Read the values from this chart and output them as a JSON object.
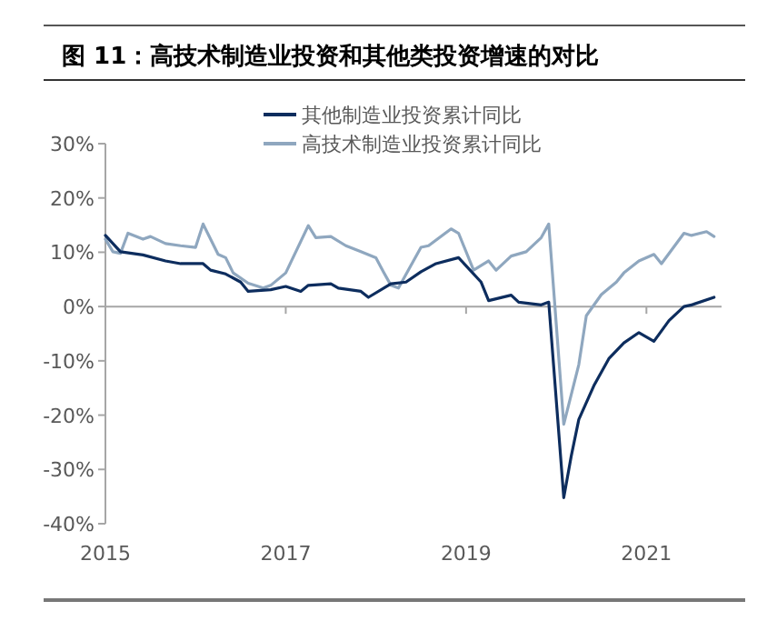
{
  "chart_data": {
    "type": "line",
    "title": "图 11：高技术制造业投资和其他类投资增速的对比",
    "legend": "top",
    "marker": "none",
    "line_style": "solid",
    "grid": false,
    "xlim": [
      "2015-01",
      "2021-11"
    ],
    "xticks": [
      "2015",
      "2017",
      "2019",
      "2021"
    ],
    "ylim": [
      -40,
      30
    ],
    "yticks": [
      {
        "value": 30,
        "label": "30%"
      },
      {
        "value": 20,
        "label": "20%"
      },
      {
        "value": 10,
        "label": "10%"
      },
      {
        "value": 0,
        "label": "0%"
      },
      {
        "value": -10,
        "label": "-10%"
      },
      {
        "value": -20,
        "label": "-20%"
      },
      {
        "value": -30,
        "label": "-30%"
      },
      {
        "value": -40,
        "label": "-40%"
      }
    ],
    "ref_lines": [
      {
        "axis": "y",
        "value": 0,
        "color": "#a6a6a6"
      }
    ],
    "series": [
      {
        "name": "其他制造业投资累计同比",
        "color": "#0d2d5e",
        "x": [
          "2015-01",
          "2015-03",
          "2015-06",
          "2015-09",
          "2015-11",
          "2016-02",
          "2016-03",
          "2016-05",
          "2016-07",
          "2016-08",
          "2016-11",
          "2017-01",
          "2017-03",
          "2017-04",
          "2017-07",
          "2017-08",
          "2017-11",
          "2017-12",
          "2018-03",
          "2018-05",
          "2018-07",
          "2018-09",
          "2018-12",
          "2019-01",
          "2019-03",
          "2019-04",
          "2019-07",
          "2019-08",
          "2019-11",
          "2019-12",
          "2020-02",
          "2020-03",
          "2020-04",
          "2020-06",
          "2020-08",
          "2020-10",
          "2020-12",
          "2021-02",
          "2021-04",
          "2021-06",
          "2021-07",
          "2021-10"
        ],
        "values": [
          13.1,
          10.1,
          9.5,
          8.4,
          7.9,
          7.9,
          6.7,
          6.0,
          4.5,
          2.8,
          3.1,
          3.7,
          2.8,
          3.9,
          4.2,
          3.4,
          2.8,
          1.7,
          4.2,
          4.5,
          6.4,
          7.9,
          9.0,
          7.5,
          4.5,
          1.1,
          2.1,
          0.8,
          0.3,
          0.8,
          -35.2,
          -27.5,
          -20.8,
          -14.6,
          -9.6,
          -6.7,
          -4.8,
          -6.4,
          -2.6,
          0,
          0.3,
          1.7
        ]
      },
      {
        "name": "高技术制造业投资累计同比",
        "color": "#8fa7bf",
        "x": [
          "2015-01",
          "2015-02",
          "2015-03",
          "2015-04",
          "2015-06",
          "2015-07",
          "2015-09",
          "2015-11",
          "2016-01",
          "2016-02",
          "2016-04",
          "2016-05",
          "2016-06",
          "2016-08",
          "2016-10",
          "2016-11",
          "2017-01",
          "2017-04",
          "2017-05",
          "2017-07",
          "2017-09",
          "2017-11",
          "2018-01",
          "2018-02",
          "2018-03",
          "2018-04",
          "2018-07",
          "2018-08",
          "2018-11",
          "2018-12",
          "2019-02",
          "2019-04",
          "2019-05",
          "2019-07",
          "2019-09",
          "2019-11",
          "2019-12",
          "2020-02",
          "2020-04",
          "2020-05",
          "2020-07",
          "2020-09",
          "2020-10",
          "2020-12",
          "2021-02",
          "2021-03",
          "2021-06",
          "2021-07",
          "2021-09",
          "2021-10"
        ],
        "values": [
          12.4,
          10.1,
          9.8,
          13.5,
          12.4,
          12.9,
          11.6,
          11.2,
          10.9,
          15.2,
          9.6,
          9.0,
          6.2,
          4.3,
          3.4,
          3.9,
          6.2,
          14.9,
          12.7,
          12.9,
          11.2,
          10.1,
          9.0,
          6.4,
          3.9,
          3.4,
          10.9,
          11.2,
          14.3,
          13.5,
          6.7,
          8.4,
          6.7,
          9.3,
          10.1,
          12.7,
          15.2,
          -21.7,
          -10.7,
          -1.7,
          2.2,
          4.5,
          6.2,
          8.4,
          9.6,
          7.9,
          13.5,
          13.1,
          13.8,
          12.9
        ]
      }
    ]
  }
}
